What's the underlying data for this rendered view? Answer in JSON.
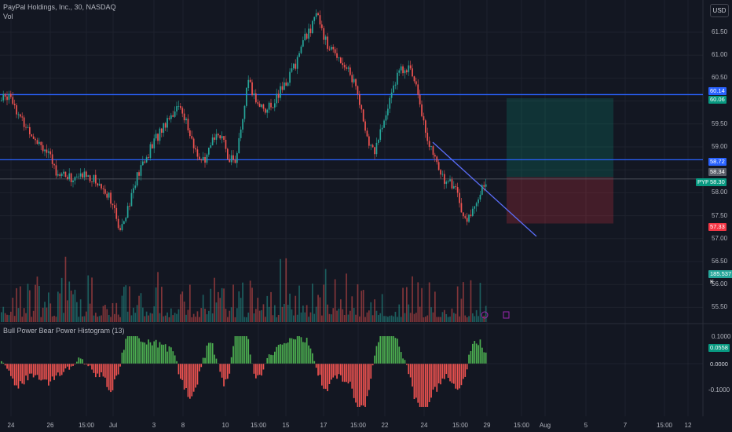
{
  "header": {
    "symbol_title": "PayPal Holdings, Inc., 30, NASDAQ",
    "volume_label": "Vol"
  },
  "toolbar": {
    "currency_button": "USD"
  },
  "indicator": {
    "title": "Bull Power Bear Power Histogram (13)"
  },
  "price_axis": [
    "61.50",
    "61.00",
    "60.50",
    "59.50",
    "59.00",
    "58.00",
    "57.50",
    "57.00",
    "56.50",
    "56.00",
    "55.50"
  ],
  "price_tags": {
    "upper_line_a": {
      "value": "60.14",
      "color": "#2962ff"
    },
    "upper_line_b": {
      "value": "60.06",
      "color": "#089981"
    },
    "mid_line": {
      "value": "58.72",
      "color": "#2962ff"
    },
    "mid_grey": {
      "value": "58.34",
      "color": "#5d606b"
    },
    "symbol": {
      "label": "PYPL",
      "value": "58.30",
      "color": "#089981"
    },
    "stop": {
      "value": "57.33",
      "color": "#f23645"
    },
    "volume": {
      "value": "185.537 K",
      "color": "#26a69a"
    }
  },
  "indicator_axis": [
    "0.1000",
    "-0.1000"
  ],
  "indicator_tags": {
    "bull": {
      "value": "0.0558",
      "color": "#089981"
    },
    "zero": {
      "value": "0.0000",
      "color": "#d1d4dc"
    }
  },
  "time_axis": [
    "24",
    "26",
    "15:00",
    "Jul",
    "3",
    "8",
    "10",
    "15:00",
    "15",
    "17",
    "15:00",
    "22",
    "24",
    "15:00",
    "29",
    "15:00",
    "Aug",
    "5",
    "7",
    "15:00",
    "12"
  ],
  "colors": {
    "up": "#26a69a",
    "down": "#ef5350",
    "hline": "#2962ff",
    "background": "#131722"
  },
  "chart_data": {
    "type": "candlestick",
    "ylim": [
      55.4,
      61.9
    ],
    "horizontal_levels": [
      60.14,
      58.72
    ],
    "trendline": {
      "from": 59.1,
      "to": 57.05
    },
    "position": {
      "entry": 58.34,
      "target": 60.06,
      "stop": 57.33
    },
    "path_points": [
      [
        0,
        60.0
      ],
      [
        12,
        60.2
      ],
      [
        25,
        59.6
      ],
      [
        40,
        59.3
      ],
      [
        55,
        59.0
      ],
      [
        70,
        58.5
      ],
      [
        90,
        58.3
      ],
      [
        110,
        58.4
      ],
      [
        125,
        58.2
      ],
      [
        140,
        57.9
      ],
      [
        150,
        57.2
      ],
      [
        160,
        57.6
      ],
      [
        175,
        58.4
      ],
      [
        195,
        59.1
      ],
      [
        215,
        59.7
      ],
      [
        230,
        59.9
      ],
      [
        245,
        59.0
      ],
      [
        260,
        58.6
      ],
      [
        275,
        59.4
      ],
      [
        290,
        58.8
      ],
      [
        300,
        58.7
      ],
      [
        315,
        60.4
      ],
      [
        325,
        60.0
      ],
      [
        340,
        59.8
      ],
      [
        360,
        60.3
      ],
      [
        375,
        60.8
      ],
      [
        385,
        61.3
      ],
      [
        395,
        61.6
      ],
      [
        405,
        61.9
      ],
      [
        415,
        61.2
      ],
      [
        430,
        61.0
      ],
      [
        445,
        60.6
      ],
      [
        455,
        60.2
      ],
      [
        465,
        59.2
      ],
      [
        475,
        58.9
      ],
      [
        490,
        59.6
      ],
      [
        500,
        60.4
      ],
      [
        515,
        60.8
      ],
      [
        530,
        60.4
      ],
      [
        540,
        59.4
      ],
      [
        550,
        58.8
      ],
      [
        565,
        58.3
      ],
      [
        580,
        58.1
      ],
      [
        592,
        57.3
      ],
      [
        600,
        57.6
      ],
      [
        610,
        58.0
      ],
      [
        620,
        58.3
      ]
    ]
  }
}
